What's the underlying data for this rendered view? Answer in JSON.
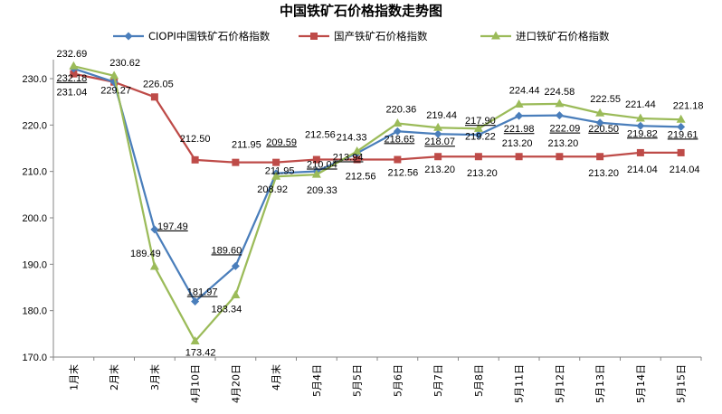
{
  "chart_data": {
    "type": "line",
    "title": "中国铁矿石价格指数走势图",
    "xlabel": "",
    "ylabel": "",
    "categories": [
      "1月末",
      "2月末",
      "3月末",
      "4月10日",
      "4月20日",
      "4月末",
      "5月4日",
      "5月5日",
      "5月6日",
      "5月7日",
      "5月8日",
      "5月11日",
      "5月12日",
      "5月13日",
      "5月14日",
      "5月15日"
    ],
    "ylim": [
      170,
      230
    ],
    "yticks": [
      "170.0",
      "180.0",
      "190.0",
      "200.0",
      "210.0",
      "220.0",
      "230.0"
    ],
    "grid": false,
    "legend_position": "top",
    "series": [
      {
        "name": "CIOPI中国铁矿石价格指数",
        "color": "#4A7EBB",
        "marker": "diamond",
        "values": [
          232.18,
          229.27,
          197.49,
          181.97,
          189.6,
          209.59,
          210.04,
          213.94,
          218.65,
          218.07,
          217.9,
          221.98,
          222.09,
          220.5,
          219.82,
          219.61
        ]
      },
      {
        "name": "国产铁矿石价格指数",
        "color": "#BE4B48",
        "marker": "square",
        "values": [
          231.04,
          229.27,
          226.05,
          212.5,
          211.95,
          211.95,
          212.56,
          212.56,
          212.56,
          213.2,
          213.2,
          213.2,
          213.2,
          213.2,
          214.04,
          214.04
        ]
      },
      {
        "name": "进口铁矿石价格指数",
        "color": "#9BBB59",
        "marker": "triangle",
        "values": [
          232.69,
          230.62,
          189.49,
          173.42,
          183.34,
          208.92,
          209.33,
          214.33,
          220.36,
          219.44,
          219.22,
          224.44,
          224.58,
          222.55,
          221.44,
          221.18
        ]
      }
    ],
    "labels": [
      {
        "text": "232.69",
        "i": 0,
        "y": 232.69,
        "dx": -2,
        "dy": -10,
        "u": false
      },
      {
        "text": "232.18",
        "i": 0,
        "y": 232.18,
        "dx": -2,
        "dy": 14,
        "u": true
      },
      {
        "text": "231.04",
        "i": 0,
        "y": 231.04,
        "dx": -2,
        "dy": 24,
        "u": false
      },
      {
        "text": "230.62",
        "i": 1,
        "y": 230.62,
        "dx": 12,
        "dy": -11,
        "u": false
      },
      {
        "text": "229.27",
        "i": 1,
        "y": 229.27,
        "dx": 2,
        "dy": 13,
        "u": false
      },
      {
        "text": "226.05",
        "i": 2,
        "y": 226.05,
        "dx": 4,
        "dy": -11,
        "u": false
      },
      {
        "text": "197.49",
        "i": 2,
        "y": 197.49,
        "dx": 20,
        "dy": 0,
        "u": true
      },
      {
        "text": "189.49",
        "i": 2,
        "y": 189.49,
        "dx": -10,
        "dy": -11,
        "u": false
      },
      {
        "text": "212.50",
        "i": 3,
        "y": 212.5,
        "dx": 0,
        "dy": -20,
        "u": false
      },
      {
        "text": "181.97",
        "i": 3,
        "y": 181.97,
        "dx": 8,
        "dy": -7,
        "u": true
      },
      {
        "text": "173.42",
        "i": 3,
        "y": 173.42,
        "dx": 6,
        "dy": 16,
        "u": false
      },
      {
        "text": "211.95",
        "i": 4,
        "y": 211.95,
        "dx": 12,
        "dy": -16,
        "u": false
      },
      {
        "text": "189.60",
        "i": 4,
        "y": 189.6,
        "dx": -10,
        "dy": -14,
        "u": true
      },
      {
        "text": "183.34",
        "i": 4,
        "y": 183.34,
        "dx": -10,
        "dy": 19,
        "u": false
      },
      {
        "text": "209.59",
        "i": 5,
        "y": 209.59,
        "dx": 6,
        "dy": -31,
        "u": true
      },
      {
        "text": "211.95",
        "i": 5,
        "y": 211.95,
        "dx": 4,
        "dy": 13,
        "u": false
      },
      {
        "text": "208.92",
        "i": 5,
        "y": 208.92,
        "dx": -4,
        "dy": 18,
        "u": false
      },
      {
        "text": "212.56",
        "i": 6,
        "y": 212.56,
        "dx": 4,
        "dy": -24,
        "u": false
      },
      {
        "text": "210.04",
        "i": 6,
        "y": 210.04,
        "dx": 6,
        "dy": -4,
        "u": true
      },
      {
        "text": "209.33",
        "i": 6,
        "y": 209.33,
        "dx": 6,
        "dy": 21,
        "u": false
      },
      {
        "text": "214.33",
        "i": 7,
        "y": 214.33,
        "dx": -6,
        "dy": -12,
        "u": false
      },
      {
        "text": "213.94",
        "i": 7,
        "y": 213.94,
        "dx": -10,
        "dy": 8,
        "u": true
      },
      {
        "text": "212.56",
        "i": 7,
        "y": 212.56,
        "dx": 4,
        "dy": 22,
        "u": false
      },
      {
        "text": "220.36",
        "i": 8,
        "y": 220.36,
        "dx": 4,
        "dy": -12,
        "u": false
      },
      {
        "text": "218.65",
        "i": 8,
        "y": 218.65,
        "dx": 2,
        "dy": 12,
        "u": true
      },
      {
        "text": "212.56",
        "i": 8,
        "y": 212.56,
        "dx": 6,
        "dy": 18,
        "u": false
      },
      {
        "text": "219.44",
        "i": 9,
        "y": 219.44,
        "dx": 4,
        "dy": -10,
        "u": false
      },
      {
        "text": "218.07",
        "i": 9,
        "y": 218.07,
        "dx": 2,
        "dy": 12,
        "u": true
      },
      {
        "text": "213.20",
        "i": 9,
        "y": 213.2,
        "dx": 2,
        "dy": 18,
        "u": false
      },
      {
        "text": "217.90",
        "i": 10,
        "y": 217.9,
        "dx": 2,
        "dy": -12,
        "u": true
      },
      {
        "text": "219.22",
        "i": 10,
        "y": 219.22,
        "dx": 2,
        "dy": 12,
        "u": false
      },
      {
        "text": "213.20",
        "i": 10,
        "y": 213.2,
        "dx": 4,
        "dy": 22,
        "u": false
      },
      {
        "text": "224.44",
        "i": 11,
        "y": 224.44,
        "dx": 6,
        "dy": -12,
        "u": false
      },
      {
        "text": "221.98",
        "i": 11,
        "y": 221.98,
        "dx": 0,
        "dy": 18,
        "u": true
      },
      {
        "text": "213.20",
        "i": 11,
        "y": 213.2,
        "dx": -2,
        "dy": -11,
        "u": false
      },
      {
        "text": "224.58",
        "i": 12,
        "y": 224.58,
        "dx": 0,
        "dy": -10,
        "u": false
      },
      {
        "text": "222.09",
        "i": 12,
        "y": 222.09,
        "dx": 6,
        "dy": 18,
        "u": true
      },
      {
        "text": "213.20",
        "i": 12,
        "y": 213.2,
        "dx": 4,
        "dy": -11,
        "u": false
      },
      {
        "text": "222.55",
        "i": 13,
        "y": 222.55,
        "dx": 6,
        "dy": -12,
        "u": false
      },
      {
        "text": "220.50",
        "i": 13,
        "y": 220.5,
        "dx": 4,
        "dy": 10,
        "u": true
      },
      {
        "text": "213.20",
        "i": 13,
        "y": 213.2,
        "dx": 4,
        "dy": 22,
        "u": false
      },
      {
        "text": "221.44",
        "i": 14,
        "y": 221.44,
        "dx": 0,
        "dy": -12,
        "u": false
      },
      {
        "text": "219.82",
        "i": 14,
        "y": 219.82,
        "dx": 2,
        "dy": 12,
        "u": true
      },
      {
        "text": "214.04",
        "i": 14,
        "y": 214.04,
        "dx": 2,
        "dy": 22,
        "u": false
      },
      {
        "text": "221.18",
        "i": 15,
        "y": 221.18,
        "dx": 8,
        "dy": -12,
        "u": false
      },
      {
        "text": "219.61",
        "i": 15,
        "y": 219.61,
        "dx": 2,
        "dy": 12,
        "u": true
      },
      {
        "text": "214.04",
        "i": 15,
        "y": 214.04,
        "dx": 4,
        "dy": 22,
        "u": false
      }
    ]
  }
}
